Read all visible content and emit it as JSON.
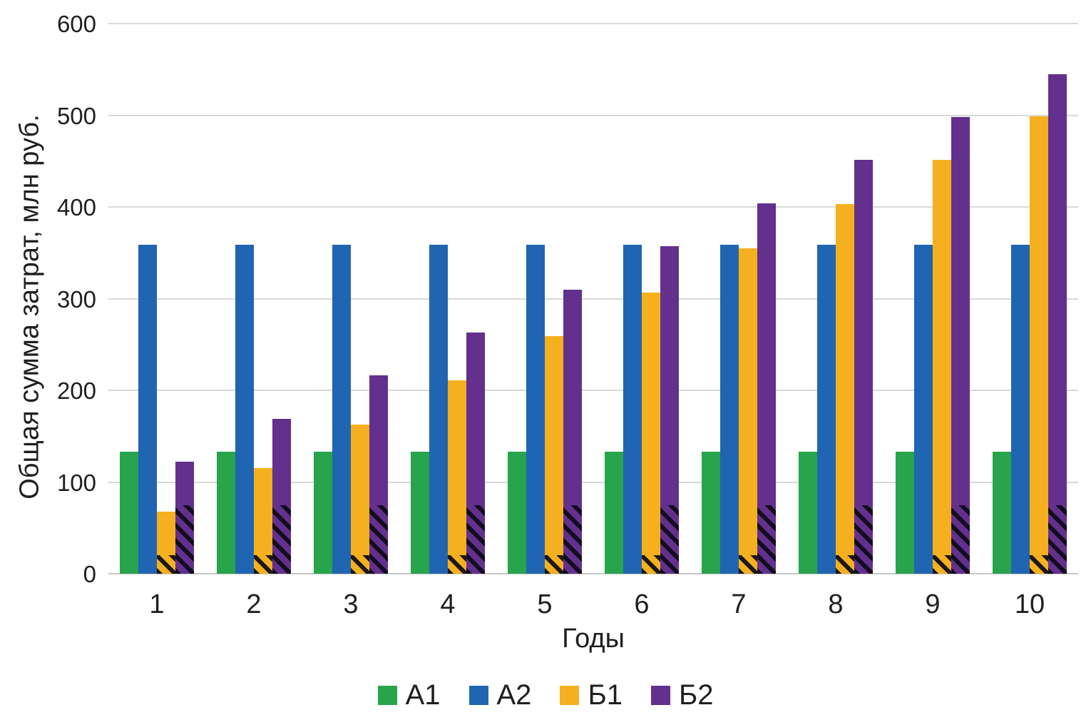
{
  "chart_data": {
    "type": "bar",
    "title": "",
    "xlabel": "Годы",
    "ylabel": "Общая сумма затрат, млн руб.",
    "categories": [
      "1",
      "2",
      "3",
      "4",
      "5",
      "6",
      "7",
      "8",
      "9",
      "10"
    ],
    "series": [
      {
        "name": "А1",
        "color": "#28a44c",
        "values": [
          133,
          133,
          133,
          133,
          133,
          133,
          133,
          133,
          133,
          133
        ],
        "hatch_base": 0
      },
      {
        "name": "А2",
        "color": "#2065b1",
        "values": [
          359,
          359,
          359,
          359,
          359,
          359,
          359,
          359,
          359,
          359
        ],
        "hatch_base": 0
      },
      {
        "name": "Б1",
        "color": "#f4b01e",
        "values": [
          68,
          115,
          163,
          211,
          259,
          307,
          355,
          403,
          451,
          499
        ],
        "hatch_base": 20
      },
      {
        "name": "Б2",
        "color": "#63308e",
        "values": [
          122,
          169,
          216,
          263,
          310,
          357,
          404,
          451,
          498,
          545
        ],
        "hatch_base": 75
      }
    ],
    "ylim": [
      0,
      600
    ],
    "yticks": [
      0,
      100,
      200,
      300,
      400,
      500,
      600
    ],
    "grid": true,
    "legend_position": "bottom",
    "hatch_pattern": "black diagonal stripes overlay on lower part of Б1 and Б2 bars"
  },
  "colors": {
    "background": "#ffffff",
    "gridline": "#d9d9d9",
    "text": "#1f1f1f"
  }
}
